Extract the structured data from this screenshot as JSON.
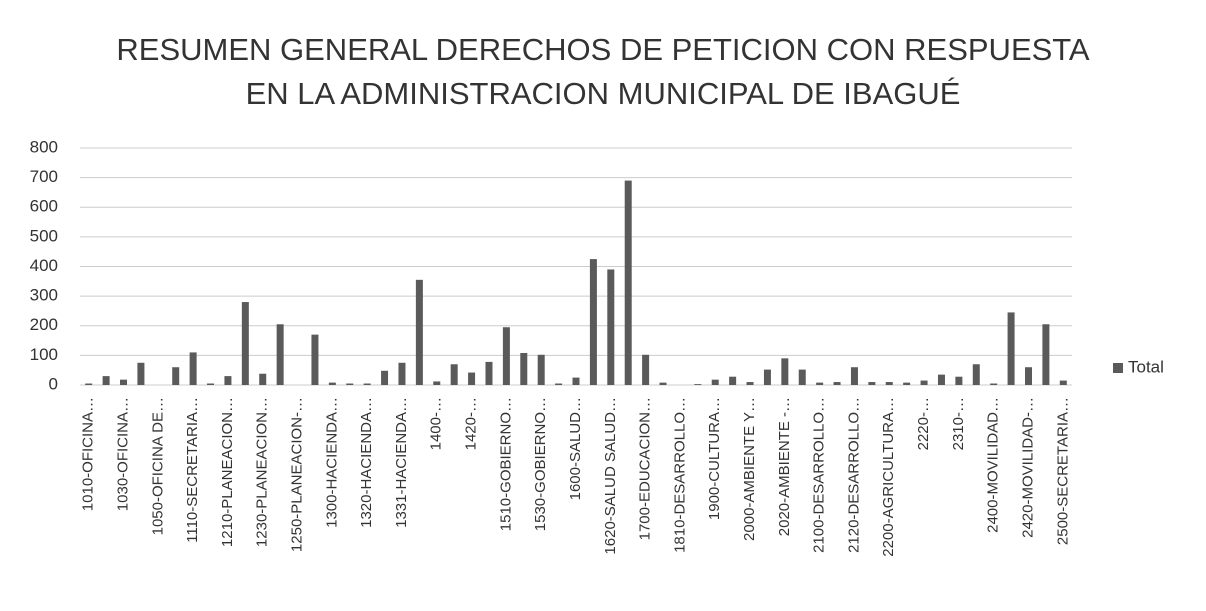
{
  "chart_data": {
    "type": "bar",
    "title": [
      "RESUMEN GENERAL DERECHOS DE PETICION CON RESPUESTA",
      "EN LA ADMINISTRACION MUNICIPAL DE IBAGUÉ"
    ],
    "categories": [
      "1010-OFICINA…",
      null,
      "1030-OFICINA…",
      null,
      "1050-OFICINA DE…",
      null,
      "1110-SECRETARIA…",
      null,
      "1210-PLANEACION…",
      null,
      "1230-PLANEACION…",
      null,
      "1250-PLANEACION-…",
      null,
      "1300-HACIENDA…",
      null,
      "1320-HACIENDA…",
      null,
      "1331-HACIENDA…",
      null,
      "1400-…",
      null,
      "1420-…",
      null,
      "1510-GOBIERNO…",
      null,
      "1530-GOBIERNO…",
      null,
      "1600-SALUD…",
      null,
      "1620-SALUD SALUD…",
      null,
      "1700-EDUCACION…",
      null,
      "1810-DESARROLLO…",
      null,
      "1900-CULTURA…",
      null,
      "2000-AMBIENTE Y…",
      null,
      "2020-AMBIENTE -…",
      null,
      "2100-DESARROLLO…",
      null,
      "2120-DESARROLLO…",
      null,
      "2200-AGRICULTURA…",
      null,
      "2220-…",
      null,
      "2310-…",
      null,
      "2400-MOVILIDAD…",
      null,
      "2420-MOVILIDAD-…",
      null,
      "2500-SECRETARIA…"
    ],
    "series": [
      {
        "name": "Total",
        "color": "#5a5a5a",
        "values": [
          5,
          30,
          18,
          75,
          0,
          60,
          110,
          5,
          30,
          280,
          38,
          205,
          0,
          170,
          8,
          5,
          5,
          48,
          75,
          355,
          12,
          70,
          42,
          78,
          195,
          108,
          102,
          5,
          25,
          425,
          390,
          690,
          102,
          8,
          0,
          3,
          18,
          28,
          10,
          52,
          90,
          52,
          8,
          10,
          60,
          10,
          10,
          8,
          15,
          35,
          28,
          70,
          5,
          245,
          60,
          205,
          15
        ]
      }
    ],
    "ylim": [
      0,
      800
    ],
    "yticks": [
      0,
      100,
      200,
      300,
      400,
      500,
      600,
      700,
      800
    ],
    "grid": true,
    "legend": "right"
  }
}
